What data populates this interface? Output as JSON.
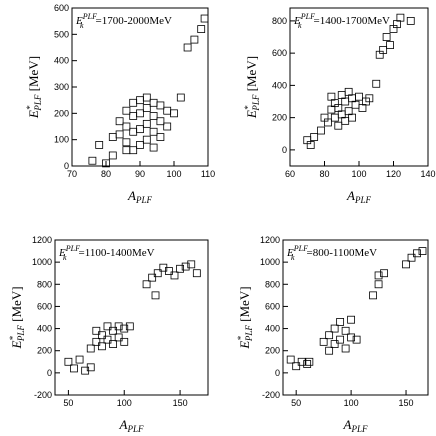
{
  "chart_data": [
    {
      "type": "scatter",
      "annotation": {
        "main": "E",
        "sup": "PLF",
        "sub": "k",
        "rest": "=1700-2000MeV"
      },
      "xlabel": {
        "main": "A",
        "sub": "PLF"
      },
      "ylabel": {
        "main": "E",
        "sup": "*",
        "sub": "PLF",
        "unit": " [MeV]"
      },
      "xlim": [
        70,
        110
      ],
      "xticks": [
        70,
        80,
        90,
        100,
        110
      ],
      "ylim": [
        0,
        600
      ],
      "yticks": [
        0,
        100,
        200,
        300,
        400,
        500,
        600
      ],
      "x": [
        76,
        78,
        80,
        82,
        84,
        84,
        86,
        86,
        86,
        88,
        88,
        88,
        88,
        90,
        90,
        90,
        90,
        92,
        92,
        92,
        92,
        94,
        94,
        94,
        94,
        96,
        96,
        96,
        98,
        98,
        100,
        102,
        104,
        106,
        108,
        109,
        82,
        86
      ],
      "y": [
        20,
        80,
        10,
        40,
        120,
        170,
        90,
        150,
        210,
        60,
        130,
        190,
        240,
        80,
        140,
        200,
        250,
        100,
        160,
        220,
        260,
        70,
        130,
        190,
        240,
        110,
        170,
        230,
        150,
        210,
        200,
        260,
        450,
        480,
        520,
        560,
        110,
        60
      ]
    },
    {
      "type": "scatter",
      "annotation": {
        "main": "E",
        "sup": "PLF",
        "sub": "k",
        "rest": "=1400-1700MeV"
      },
      "xlabel": {
        "main": "A",
        "sub": "PLF"
      },
      "ylabel": {
        "main": "E",
        "sup": "*",
        "sub": "PLF",
        "unit": " [MeV]"
      },
      "xlim": [
        60,
        140
      ],
      "xticks": [
        60,
        80,
        100,
        120,
        140
      ],
      "ylim": [
        -100,
        880
      ],
      "yticks": [
        0,
        200,
        400,
        600,
        800
      ],
      "x": [
        70,
        72,
        74,
        78,
        80,
        82,
        84,
        84,
        86,
        86,
        88,
        88,
        90,
        90,
        92,
        92,
        94,
        94,
        96,
        96,
        98,
        100,
        102,
        104,
        106,
        110,
        112,
        114,
        116,
        118,
        120,
        122,
        124,
        130
      ],
      "y": [
        60,
        30,
        80,
        120,
        200,
        170,
        250,
        330,
        200,
        290,
        150,
        260,
        220,
        340,
        180,
        300,
        240,
        360,
        200,
        320,
        280,
        330,
        260,
        300,
        320,
        410,
        590,
        620,
        700,
        650,
        750,
        780,
        820,
        800
      ]
    },
    {
      "type": "scatter",
      "annotation": {
        "main": "E",
        "sup": "PLF",
        "sub": "k",
        "rest": "=1100-1400MeV"
      },
      "xlabel": {
        "main": "A",
        "sub": "PLF"
      },
      "ylabel": {
        "main": "E",
        "sup": "*",
        "sub": "PLF",
        "unit": " [MeV]"
      },
      "xlim": [
        38,
        175
      ],
      "xticks": [
        50,
        100,
        150
      ],
      "ylim": [
        -200,
        1200
      ],
      "yticks": [
        -200,
        0,
        200,
        400,
        600,
        800,
        1000,
        1200
      ],
      "x": [
        50,
        55,
        60,
        65,
        70,
        75,
        75,
        80,
        80,
        85,
        85,
        90,
        90,
        95,
        95,
        100,
        100,
        105,
        120,
        125,
        128,
        130,
        135,
        140,
        145,
        150,
        155,
        160,
        165,
        70
      ],
      "y": [
        100,
        40,
        120,
        20,
        220,
        280,
        380,
        240,
        340,
        300,
        420,
        260,
        380,
        320,
        420,
        280,
        400,
        420,
        800,
        860,
        700,
        900,
        950,
        920,
        880,
        940,
        960,
        980,
        900,
        50
      ]
    },
    {
      "type": "scatter",
      "annotation": {
        "main": "E",
        "sup": "PLF",
        "sub": "k",
        "rest": "=800-1100MeV"
      },
      "xlabel": {
        "main": "A",
        "sub": "PLF"
      },
      "ylabel": {
        "main": "E",
        "sup": "*",
        "sub": "PLF",
        "unit": " [MeV]"
      },
      "xlim": [
        38,
        170
      ],
      "xticks": [
        50,
        100,
        150
      ],
      "ylim": [
        -200,
        1200
      ],
      "yticks": [
        -200,
        0,
        200,
        400,
        600,
        800,
        1000,
        1200
      ],
      "x": [
        45,
        50,
        55,
        60,
        75,
        80,
        80,
        85,
        85,
        90,
        90,
        95,
        95,
        100,
        100,
        105,
        120,
        125,
        125,
        130,
        150,
        155,
        160,
        165,
        62
      ],
      "y": [
        120,
        60,
        100,
        80,
        280,
        200,
        340,
        260,
        400,
        300,
        460,
        220,
        380,
        320,
        480,
        300,
        700,
        800,
        880,
        900,
        980,
        1040,
        1080,
        1100,
        100
      ]
    }
  ]
}
